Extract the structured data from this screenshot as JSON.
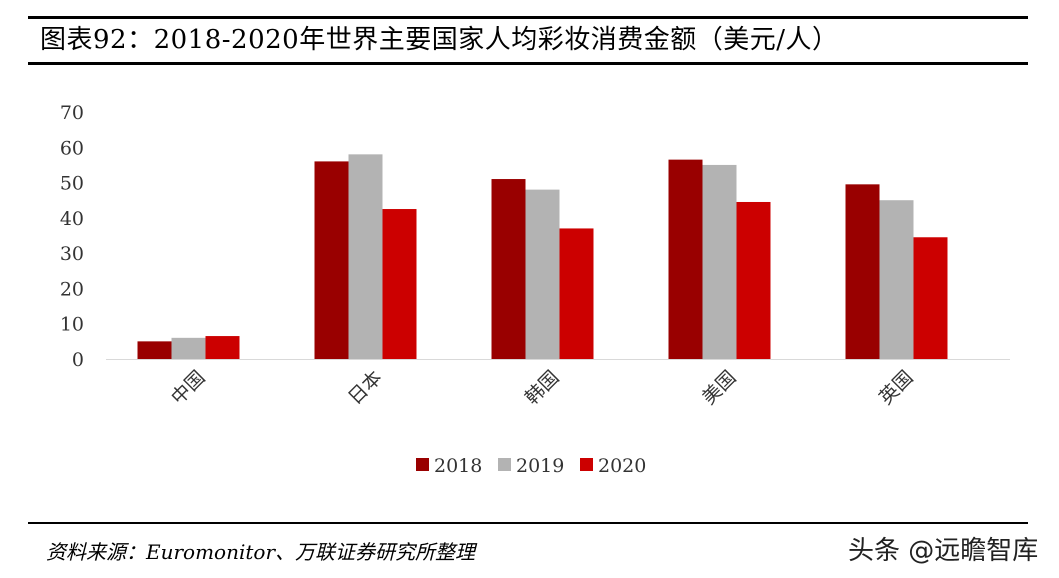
{
  "title": "图表92：2018-2020年世界主要国家人均彩妆消费金额（美元/人）",
  "source": "资料来源：Euromonitor、万联证券研究所整理",
  "watermark": "头条 @远瞻智库",
  "chart_data": {
    "type": "bar",
    "title": "",
    "xlabel": "",
    "ylabel": "",
    "ylim": [
      0,
      70
    ],
    "yticks": [
      0,
      10,
      20,
      30,
      40,
      50,
      60,
      70
    ],
    "categories": [
      "中国",
      "日本",
      "韩国",
      "美国",
      "英国"
    ],
    "series": [
      {
        "name": "2018",
        "color": "#990000",
        "values": [
          5,
          56,
          51,
          56.5,
          49.5
        ]
      },
      {
        "name": "2019",
        "color": "#b3b3b3",
        "values": [
          6,
          58,
          48,
          55,
          45
        ]
      },
      {
        "name": "2020",
        "color": "#cc0000",
        "values": [
          6.5,
          42.5,
          37,
          44.5,
          34.5
        ]
      }
    ],
    "legend_position": "bottom",
    "grid": false
  }
}
